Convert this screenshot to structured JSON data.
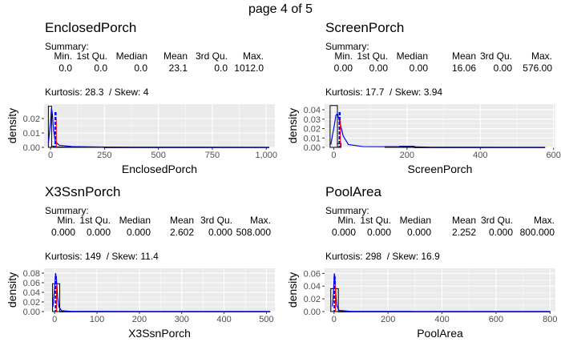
{
  "page_title": "page 4 of 5",
  "summary_label": "Summary:",
  "summary_headers": [
    "Min.",
    "1st Qu.",
    "Median",
    "Mean",
    "3rd Qu.",
    "Max."
  ],
  "colors": {
    "panel_bg": "#ebebeb",
    "grid": "#ffffff",
    "density_line": "#0000ff",
    "mean_line": "#ff0000",
    "bar_edge": "#000000",
    "axis_text": "#4d4d4d"
  },
  "chart_data": [
    {
      "type": "histogram",
      "title": "EnclosedPorch",
      "summary_values": [
        "0.0",
        "0.0",
        "0.0",
        "23.1",
        "0.0",
        "1012.0"
      ],
      "kurtosis_text": "Kurtosis: 28.3  / Skew: 4",
      "xlabel": "EnclosedPorch",
      "ylabel": "density",
      "xlim": [
        -30,
        1040
      ],
      "ylim": [
        0,
        0.03
      ],
      "x_ticks": [
        0,
        250,
        500,
        750,
        1000
      ],
      "x_tick_labels": [
        "0",
        "250",
        "500",
        "750",
        "1,000"
      ],
      "y_ticks": [
        0,
        0.01,
        0.02
      ],
      "y_tick_labels": [
        "0.00",
        "0.01",
        "0.02"
      ],
      "bins": [
        {
          "x0": -10,
          "x1": 5,
          "y": 0.0285
        },
        {
          "x0": 5,
          "x1": 15,
          "y": 0.0008
        },
        {
          "x0": 15,
          "x1": 250,
          "y": 0.0003
        },
        {
          "x0": 250,
          "x1": 1012,
          "y": 8e-05
        }
      ],
      "density": [
        [
          -10,
          0.003
        ],
        [
          0,
          0.017
        ],
        [
          4,
          0.027
        ],
        [
          8,
          0.024
        ],
        [
          14,
          0.012
        ],
        [
          22,
          0.004
        ],
        [
          40,
          0.0015
        ],
        [
          100,
          0.0006
        ],
        [
          250,
          0.0002
        ],
        [
          400,
          0.0001
        ],
        [
          700,
          5e-05
        ],
        [
          1012,
          2e-05
        ]
      ],
      "mean": 23.1
    },
    {
      "type": "histogram",
      "title": "ScreenPorch",
      "summary_values": [
        "0.00",
        "0.00",
        "0.00",
        "16.06",
        "0.00",
        "576.00"
      ],
      "kurtosis_text": "Kurtosis: 17.7  / Skew: 3.94",
      "xlabel": "ScreenPorch",
      "ylabel": "density",
      "xlim": [
        -25,
        605
      ],
      "ylim": [
        0,
        0.046
      ],
      "x_ticks": [
        0,
        200,
        400,
        600
      ],
      "x_tick_labels": [
        "0",
        "200",
        "400",
        "600"
      ],
      "y_ticks": [
        0,
        0.01,
        0.02,
        0.03,
        0.04
      ],
      "y_tick_labels": [
        "0.00",
        "0.01",
        "0.02",
        "0.03",
        "0.04"
      ],
      "bins": [
        {
          "x0": -10,
          "x1": 10,
          "y": 0.0445
        },
        {
          "x0": 10,
          "x1": 20,
          "y": 0.004
        },
        {
          "x0": 140,
          "x1": 180,
          "y": 0.0008
        },
        {
          "x0": 180,
          "x1": 220,
          "y": 0.0012
        },
        {
          "x0": 220,
          "x1": 576,
          "y": 0.0001
        }
      ],
      "density": [
        [
          -8,
          0.003
        ],
        [
          0,
          0.02
        ],
        [
          6,
          0.034
        ],
        [
          10,
          0.036
        ],
        [
          16,
          0.028
        ],
        [
          26,
          0.012
        ],
        [
          40,
          0.003
        ],
        [
          80,
          0.0008
        ],
        [
          160,
          0.0006
        ],
        [
          200,
          0.0008
        ],
        [
          260,
          0.0002
        ],
        [
          400,
          0.0001
        ],
        [
          576,
          3e-05
        ]
      ],
      "mean": 16.06
    },
    {
      "type": "histogram",
      "title": "X3SsnPorch",
      "summary_values": [
        "0.000",
        "0.000",
        "0.000",
        "2.602",
        "0.000",
        "508.000"
      ],
      "kurtosis_text": "Kurtosis: 149  / Skew: 11.4",
      "xlabel": "X3SsnPorch",
      "ylabel": "density",
      "xlim": [
        -25,
        520
      ],
      "ylim": [
        0,
        0.09
      ],
      "x_ticks": [
        0,
        100,
        200,
        300,
        400,
        500
      ],
      "x_tick_labels": [
        "0",
        "100",
        "200",
        "300",
        "400",
        "500"
      ],
      "y_ticks": [
        0,
        0.02,
        0.04,
        0.06,
        0.08
      ],
      "y_tick_labels": [
        "0.00",
        "0.02",
        "0.04",
        "0.06",
        "0.08"
      ],
      "bins": [
        {
          "x0": -5,
          "x1": 12,
          "y": 0.058
        },
        {
          "x0": 12,
          "x1": 508,
          "y": 0.0002
        }
      ],
      "density": [
        [
          -4,
          0.01
        ],
        [
          0,
          0.05
        ],
        [
          2,
          0.08
        ],
        [
          4,
          0.07
        ],
        [
          7,
          0.03
        ],
        [
          10,
          0.01
        ],
        [
          16,
          0.002
        ],
        [
          40,
          0.0003
        ],
        [
          200,
          0.0001
        ],
        [
          508,
          2e-05
        ]
      ],
      "mean": 2.602
    },
    {
      "type": "histogram",
      "title": "PoolArea",
      "summary_values": [
        "0.000",
        "0.000",
        "0.000",
        "2.252",
        "0.000",
        "800.000"
      ],
      "kurtosis_text": "Kurtosis: 298  / Skew: 16.9",
      "xlabel": "PoolArea",
      "ylabel": "density",
      "xlim": [
        -35,
        820
      ],
      "ylim": [
        0,
        0.068
      ],
      "x_ticks": [
        0,
        200,
        400,
        600,
        800
      ],
      "x_tick_labels": [
        "0",
        "200",
        "400",
        "600",
        "800"
      ],
      "y_ticks": [
        0,
        0.02,
        0.04,
        0.06
      ],
      "y_tick_labels": [
        "0.00",
        "0.02",
        "0.04",
        "0.06"
      ],
      "bins": [
        {
          "x0": -12,
          "x1": 16,
          "y": 0.036
        },
        {
          "x0": 16,
          "x1": 800,
          "y": 0.0001
        }
      ],
      "density": [
        [
          -6,
          0.008
        ],
        [
          -2,
          0.03
        ],
        [
          1,
          0.06
        ],
        [
          3,
          0.055
        ],
        [
          6,
          0.03
        ],
        [
          10,
          0.01
        ],
        [
          18,
          0.002
        ],
        [
          60,
          0.0003
        ],
        [
          300,
          0.0001
        ],
        [
          800,
          1e-05
        ]
      ],
      "mean": 2.252
    }
  ]
}
